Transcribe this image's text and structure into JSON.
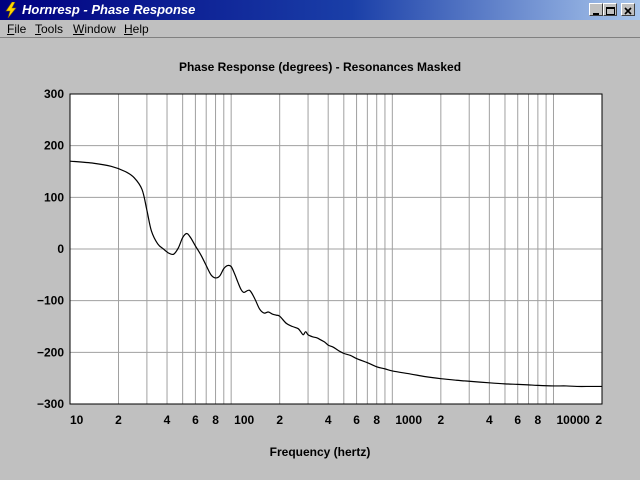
{
  "window": {
    "title": "Hornresp - Phase Response",
    "icon": "lightning-bolt-icon",
    "controls": [
      "minimize-icon",
      "maximize-icon",
      "close-icon"
    ]
  },
  "menu": {
    "items": [
      {
        "label": "File",
        "underline": "F",
        "rest": "ile"
      },
      {
        "label": "Tools",
        "underline": "T",
        "rest": "ools"
      },
      {
        "label": "Window",
        "underline": "W",
        "rest": "indow"
      },
      {
        "label": "Help",
        "underline": "H",
        "rest": "elp"
      }
    ]
  },
  "chart_data": {
    "type": "line",
    "title": "Phase Response (degrees) - Resonances Masked",
    "xlabel": "Frequency (hertz)",
    "ylabel": "",
    "x_scale": "log",
    "xlim": [
      10,
      20000
    ],
    "ylim": [
      -300,
      300
    ],
    "y_ticks": [
      300,
      200,
      100,
      0,
      -100,
      -200,
      -300
    ],
    "x_ticks": [
      {
        "value": 10,
        "label": "10"
      },
      {
        "value": 20,
        "label": "2"
      },
      {
        "value": 40,
        "label": "4"
      },
      {
        "value": 60,
        "label": "6"
      },
      {
        "value": 80,
        "label": "8"
      },
      {
        "value": 100,
        "label": "100"
      },
      {
        "value": 200,
        "label": "2"
      },
      {
        "value": 400,
        "label": "4"
      },
      {
        "value": 600,
        "label": "6"
      },
      {
        "value": 800,
        "label": "8"
      },
      {
        "value": 1000,
        "label": "1000"
      },
      {
        "value": 2000,
        "label": "2"
      },
      {
        "value": 4000,
        "label": "4"
      },
      {
        "value": 6000,
        "label": "6"
      },
      {
        "value": 8000,
        "label": "8"
      },
      {
        "value": 10000,
        "label": "10000"
      },
      {
        "value": 20000,
        "label": "2"
      }
    ],
    "grid": true,
    "colors": {
      "background": "#ffffff",
      "line": "#000000",
      "grid": "#a0a0a0",
      "frame": "#000000"
    },
    "series": [
      {
        "x": [
          10,
          14,
          18,
          22,
          25,
          28,
          30,
          32,
          35,
          38,
          41,
          44,
          47,
          50,
          53,
          56,
          60,
          65,
          70,
          75,
          80,
          85,
          90,
          95,
          100,
          105,
          110,
          115,
          120,
          130,
          140,
          150,
          160,
          170,
          180,
          190,
          200,
          220,
          240,
          260,
          270,
          280,
          290,
          300,
          320,
          340,
          360,
          380,
          400,
          430,
          460,
          500,
          550,
          600,
          700,
          800,
          900,
          1000,
          1300,
          1600,
          2000,
          2500,
          3000,
          4000,
          5000,
          6000,
          7000,
          8000,
          10000,
          12000,
          14000,
          17000,
          20000
        ],
        "y": [
          170,
          166,
          160,
          150,
          138,
          115,
          75,
          35,
          10,
          0,
          -8,
          -10,
          2,
          22,
          30,
          22,
          6,
          -12,
          -32,
          -50,
          -56,
          -52,
          -38,
          -32,
          -34,
          -48,
          -64,
          -78,
          -84,
          -80,
          -96,
          -116,
          -124,
          -122,
          -126,
          -128,
          -130,
          -144,
          -150,
          -154,
          -160,
          -166,
          -160,
          -166,
          -170,
          -172,
          -176,
          -180,
          -186,
          -190,
          -196,
          -202,
          -206,
          -212,
          -220,
          -228,
          -232,
          -236,
          -242,
          -247,
          -251,
          -254,
          -256,
          -259,
          -261,
          -262,
          -263,
          -264,
          -265,
          -265,
          -266,
          -266,
          -266
        ]
      }
    ]
  }
}
